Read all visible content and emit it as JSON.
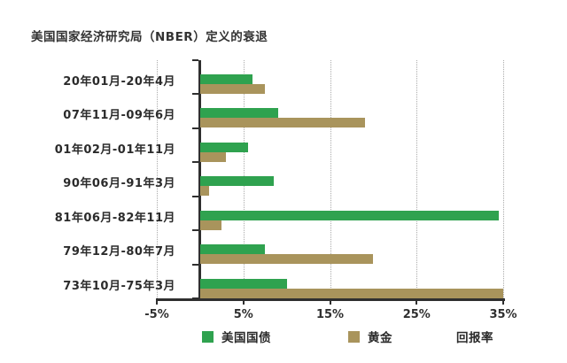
{
  "chart_data": {
    "type": "bar",
    "orientation": "horizontal",
    "title": "美国国家经济研究局（NBER）定义的衰退",
    "xlabel": "回报率",
    "categories": [
      "20年01月-20年4月",
      "07年11月-09年6月",
      "01年02月-01年11月",
      "90年06月-91年3月",
      "81年06月-82年11月",
      "79年12月-80年7月",
      "73年10月-75年3月"
    ],
    "series": [
      {
        "name": "美国国债",
        "color": "#2FA24F",
        "values": [
          6,
          9,
          5.5,
          8.5,
          34.5,
          7.5,
          10
        ]
      },
      {
        "name": "黄金",
        "color": "#A9945C",
        "values": [
          7.5,
          19,
          3,
          1,
          2.5,
          20,
          35
        ]
      }
    ],
    "x_ticks": {
      "values": [
        -5,
        5,
        15,
        25,
        35
      ],
      "labels": [
        "-5%",
        "5%",
        "15%",
        "25%",
        "35%"
      ]
    },
    "xlim": [
      -5,
      35
    ],
    "grid": "dotted-vertical",
    "legend_position": "bottom",
    "value_unit": "%"
  }
}
